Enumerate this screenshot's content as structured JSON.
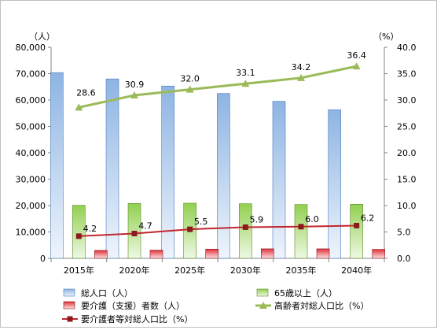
{
  "chart_data": {
    "type": "bar",
    "categories": [
      "2015年",
      "2020年",
      "2025年",
      "2030年",
      "2035年",
      "2040年"
    ],
    "y_left": {
      "unit_label": "（人）",
      "range": [
        0,
        80000
      ],
      "ticks": [
        "0",
        "10,000",
        "20,000",
        "30,000",
        "40,000",
        "50,000",
        "60,000",
        "70,000",
        "80,000"
      ],
      "tick_values": [
        0,
        10000,
        20000,
        30000,
        40000,
        50000,
        60000,
        70000,
        80000
      ]
    },
    "y_right": {
      "unit_label": "（%）",
      "range": [
        0,
        40
      ],
      "ticks": [
        "0.0",
        "5.0",
        "10.0",
        "15.0",
        "20.0",
        "25.0",
        "30.0",
        "35.0",
        "40.0"
      ],
      "tick_values": [
        0,
        5,
        10,
        15,
        20,
        25,
        30,
        35,
        40
      ]
    },
    "grid": false,
    "series": [
      {
        "name": "総人口（人）",
        "kind": "bar",
        "axis": "left",
        "color": "#8eb4e3",
        "values": [
          70400,
          68000,
          65300,
          62500,
          59500,
          56300
        ]
      },
      {
        "name": "65歳以上（人）",
        "kind": "bar",
        "axis": "left",
        "color": "#92d050",
        "values": [
          20100,
          20800,
          20900,
          20700,
          20400,
          20500
        ]
      },
      {
        "name": "要介護（支援）者数（人）",
        "kind": "bar",
        "axis": "left",
        "color": "#e0303a",
        "values": [
          3000,
          3100,
          3500,
          3600,
          3600,
          3400
        ]
      },
      {
        "name": "高齢者対総人口比（%）",
        "kind": "line",
        "axis": "right",
        "color": "#9bbb59",
        "values": [
          28.6,
          30.9,
          32.0,
          33.1,
          34.2,
          36.4
        ],
        "labels": [
          "28.6",
          "30.9",
          "32.0",
          "33.1",
          "34.2",
          "36.4"
        ]
      },
      {
        "name": "要介護者等対総人口比（%）",
        "kind": "line",
        "axis": "right",
        "color": "#c0262d",
        "values": [
          4.2,
          4.7,
          5.5,
          5.9,
          6.0,
          6.2
        ],
        "labels": [
          "4.2",
          "4.7",
          "5.5",
          "5.9",
          "6.0",
          "6.2"
        ]
      }
    ],
    "legend_position": "bottom"
  }
}
